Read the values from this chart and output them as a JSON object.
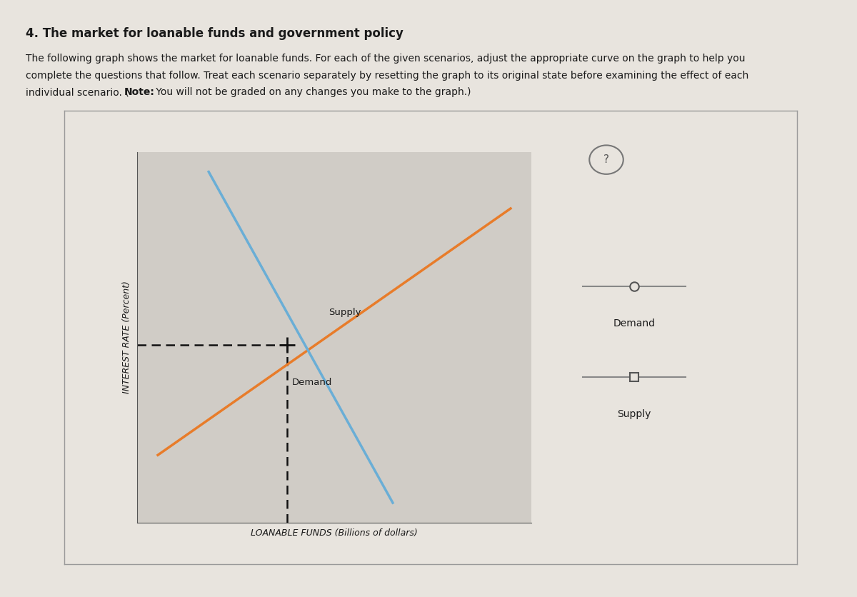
{
  "title": "4. The market for loanable funds and government policy",
  "desc1": "The following graph shows the market for loanable funds. For each of the given scenarios, adjust the appropriate curve on the graph to help you",
  "desc2": "complete the questions that follow. Treat each scenario separately by resetting the graph to its original state before examining the effect of each",
  "desc3_pre": "individual scenario. (",
  "desc3_note": "Note:",
  "desc3_post": " You will not be graded on any changes you make to the graph.)",
  "xlabel": "LOANABLE FUNDS (Billions of dollars)",
  "ylabel": "INTEREST RATE (Percent)",
  "page_bg": "#e8e4de",
  "text_bg": "#d8d4ce",
  "plot_bg": "#d0ccc6",
  "border_color": "#999999",
  "separator_color": "#b8a888",
  "demand_color": "#6aaed6",
  "supply_color": "#e87c2a",
  "dashed_color": "#111111",
  "legend_line_color": "#888888",
  "text_color": "#1a1a1a",
  "supply_label_on_graph": "Supply",
  "demand_label_on_graph": "Demand",
  "legend_demand": "Demand",
  "legend_supply": "Supply",
  "xlim": [
    0,
    10
  ],
  "ylim": [
    0,
    10
  ],
  "eq_x": 3.8,
  "eq_y": 4.8,
  "demand_x1": 1.8,
  "demand_y1": 9.5,
  "demand_x2": 6.5,
  "demand_y2": 0.5,
  "supply_x1": 0.5,
  "supply_y1": 1.8,
  "supply_x2": 9.5,
  "supply_y2": 8.5
}
